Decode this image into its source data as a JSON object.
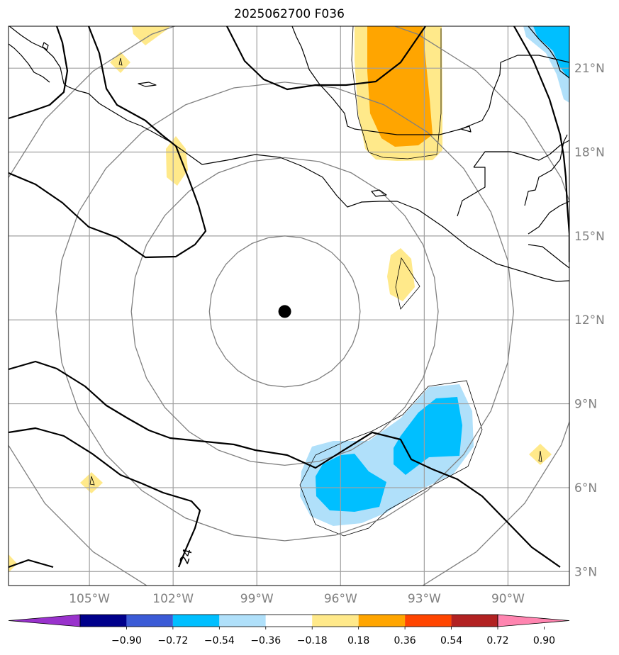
{
  "title": "2025062700 F036",
  "projection": "lon-lat",
  "extent": {
    "lon": [
      -107.9,
      -87.8
    ],
    "lat": [
      2.5,
      22.5
    ]
  },
  "gridlines": true,
  "lon_ticks": [
    {
      "lon": -105,
      "label": "105°W"
    },
    {
      "lon": -102,
      "label": "102°W"
    },
    {
      "lon": -99,
      "label": "99°W"
    },
    {
      "lon": -96,
      "label": "96°W"
    },
    {
      "lon": -93,
      "label": "93°W"
    },
    {
      "lon": -90,
      "label": "90°W"
    }
  ],
  "lat_ticks": [
    {
      "lat": 21,
      "label": "21°N"
    },
    {
      "lat": 18,
      "label": "18°N"
    },
    {
      "lat": 15,
      "label": "15°N"
    },
    {
      "lat": 12,
      "label": "12°N"
    },
    {
      "lat": 9,
      "label": "9°N"
    },
    {
      "lat": 6,
      "label": "6°N"
    },
    {
      "lat": 3,
      "label": "3°N"
    }
  ],
  "center_marker": {
    "lon": -98.0,
    "lat": 12.3
  },
  "range_rings_deg": [
    2.7,
    5.5,
    8.2,
    11.0
  ],
  "contour_label": {
    "text": "24",
    "lon": -101.4,
    "lat": 3.5
  },
  "colorbar": {
    "colors": [
      "#9932cc",
      "#00008b",
      "#3b5bd6",
      "#00bfff",
      "#b0e0fa",
      "#ffffff",
      "#ffe98a",
      "#ffa500",
      "#ff4500",
      "#b22222",
      "#ff85b0"
    ],
    "ticks": [
      "−0.90",
      "−0.72",
      "−0.54",
      "−0.36",
      "−0.18",
      "0.18",
      "0.36",
      "0.54",
      "0.72",
      "0.90"
    ],
    "extend": "both"
  },
  "colors": {
    "coast": "#000000",
    "grid": "#a0a0a0",
    "ring": "#808080",
    "pos_light": "#ffe98a",
    "pos_mid": "#ffa500",
    "neg_light": "#b0e0fa",
    "neg_mid": "#00bfff"
  }
}
